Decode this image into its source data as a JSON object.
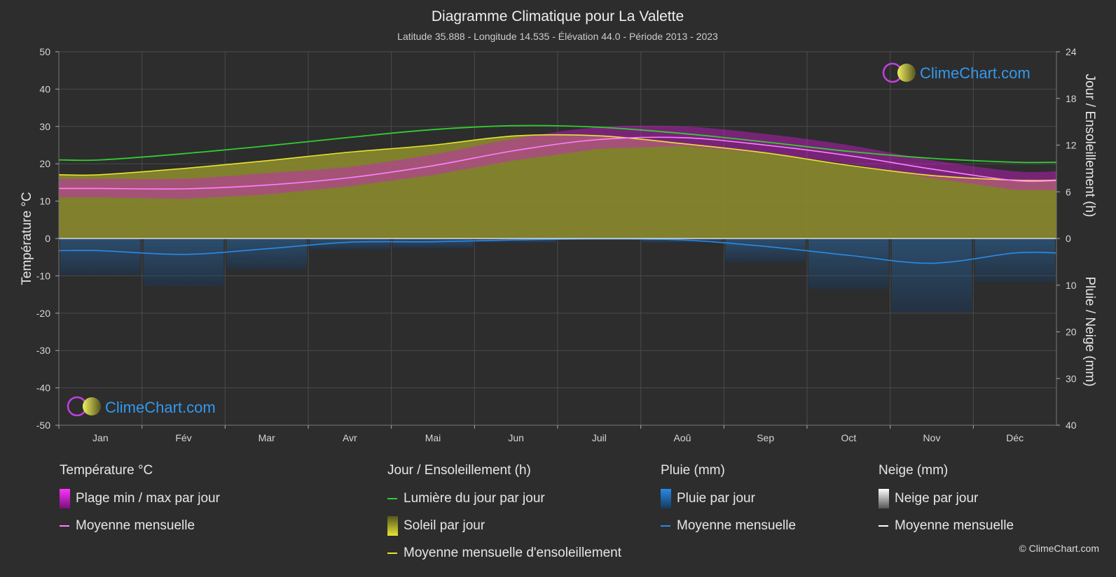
{
  "title": "Diagramme Climatique pour La Valette",
  "subtitle": "Latitude 35.888 - Longitude 14.535 - Élévation 44.0 - Période 2013 - 2023",
  "brand": "ClimeChart.com",
  "copyright": "© ClimeChart.com",
  "colors": {
    "background": "#2d2d2d",
    "temp_range": "#d21ad2",
    "temp_mean": "#ff80ff",
    "daylight": "#33cc33",
    "sunshine_fill": "#8a8a2e",
    "sunshine_mean": "#e6e62e",
    "rain": "#1e78d2",
    "rain_mean": "#2a8ae6",
    "snow_mean": "#ffffff",
    "brand_text": "#3399ee"
  },
  "chart_data": {
    "type": "line",
    "categories": [
      "Jan",
      "Fév",
      "Mar",
      "Avr",
      "Mai",
      "Jun",
      "Juil",
      "Aoû",
      "Sep",
      "Oct",
      "Nov",
      "Déc"
    ],
    "axes": {
      "left": {
        "label": "Température °C",
        "min": -50,
        "max": 50,
        "ticks": [
          50,
          40,
          30,
          20,
          10,
          0,
          -10,
          -20,
          -30,
          -40,
          -50
        ]
      },
      "right_top": {
        "label": "Jour / Ensoleillement (h)",
        "min": 0,
        "max": 24,
        "ticks": [
          24,
          18,
          12,
          6,
          0
        ]
      },
      "right_bottom": {
        "label": "Pluie / Neige (mm)",
        "min": 0,
        "max": 40,
        "ticks": [
          10,
          20,
          30,
          40
        ]
      }
    },
    "grid": true,
    "series": [
      {
        "name": "Lumière du jour par jour",
        "axis": "hours",
        "values": [
          10.1,
          10.9,
          11.9,
          13.0,
          14.0,
          14.5,
          14.3,
          13.5,
          12.4,
          11.2,
          10.3,
          9.8
        ]
      },
      {
        "name": "Moyenne mensuelle d'ensoleillement",
        "axis": "hours",
        "values": [
          8.2,
          9.0,
          10.0,
          11.1,
          12.0,
          13.2,
          13.2,
          12.2,
          11.0,
          9.4,
          8.1,
          7.5
        ]
      },
      {
        "name": "Moyenne mensuelle (température)",
        "axis": "temperature",
        "values": [
          13.4,
          13.3,
          14.3,
          16.3,
          19.5,
          23.6,
          26.5,
          27.0,
          25.0,
          22.2,
          18.6,
          15.5
        ]
      },
      {
        "name": "Plage min / max par jour",
        "axis": "temperature",
        "min": [
          11.0,
          10.6,
          11.8,
          14.0,
          17.0,
          21.0,
          24.0,
          24.8,
          22.8,
          20.0,
          16.2,
          13.0
        ],
        "max": [
          16.0,
          16.0,
          17.5,
          19.2,
          22.5,
          26.8,
          29.8,
          30.0,
          28.0,
          25.0,
          21.0,
          18.0
        ]
      },
      {
        "name": "Moyenne mensuelle (pluie)",
        "axis": "precipitation",
        "values": [
          2.6,
          3.4,
          2.2,
          0.8,
          0.7,
          0.3,
          0.1,
          0.3,
          1.7,
          3.6,
          5.3,
          3.1
        ]
      },
      {
        "name": "Moyenne mensuelle (neige)",
        "axis": "precipitation",
        "values": [
          0,
          0,
          0,
          0,
          0,
          0,
          0,
          0,
          0,
          0,
          0,
          0
        ]
      }
    ]
  },
  "legend": {
    "temperature": {
      "heading": "Température °C",
      "items": [
        "Plage min / max par jour",
        "Moyenne mensuelle"
      ]
    },
    "sun": {
      "heading": "Jour / Ensoleillement (h)",
      "items": [
        "Lumière du jour par jour",
        "Soleil par jour",
        "Moyenne mensuelle d'ensoleillement"
      ]
    },
    "rain": {
      "heading": "Pluie (mm)",
      "items": [
        "Pluie par jour",
        "Moyenne mensuelle"
      ]
    },
    "snow": {
      "heading": "Neige (mm)",
      "items": [
        "Neige par jour",
        "Moyenne mensuelle"
      ]
    }
  }
}
